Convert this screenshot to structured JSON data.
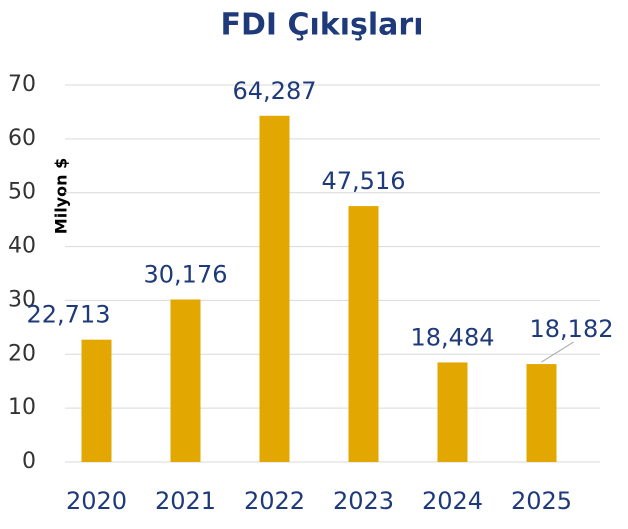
{
  "chart_data": {
    "type": "bar",
    "title": "FDI Çıkışları",
    "y_label": "Milyon $",
    "categories": [
      "2020",
      "2021",
      "2022",
      "2023",
      "2024",
      "2025"
    ],
    "values": [
      22.713,
      30.176,
      64.287,
      47.516,
      18.484,
      18.182
    ],
    "value_labels": [
      "22,713",
      "30,176",
      "64,287",
      "47,516",
      "18,484",
      "18,182"
    ],
    "color": "#e2a700",
    "ylim": [
      0,
      70
    ],
    "yticks": [
      0,
      10,
      20,
      30,
      40,
      50,
      60,
      70
    ],
    "grid": true
  }
}
